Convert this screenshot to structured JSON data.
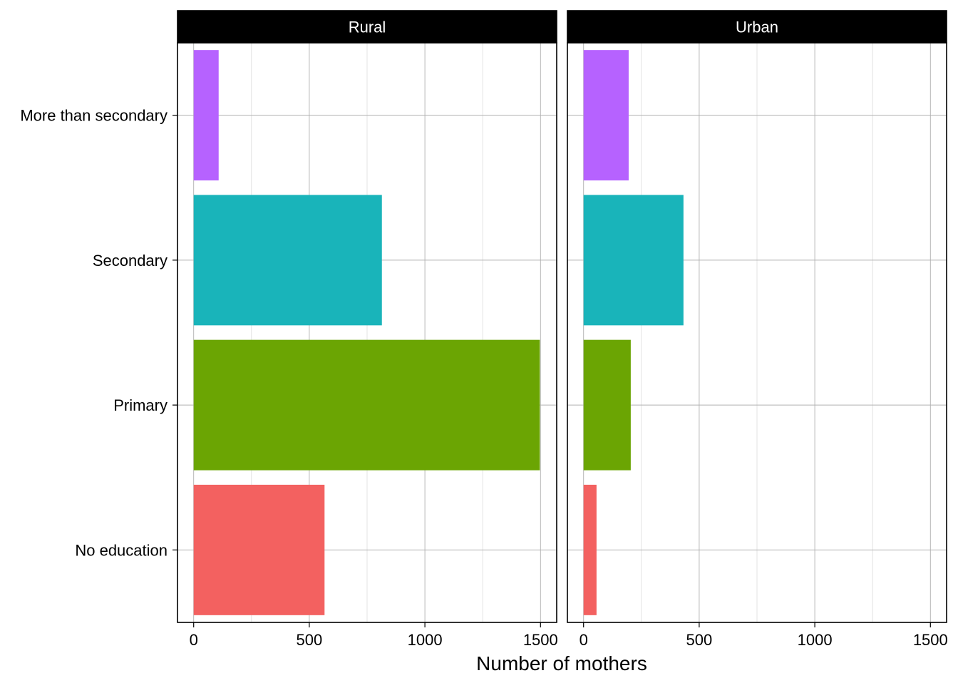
{
  "chart_data": {
    "type": "bar",
    "orientation": "horizontal",
    "facet_variable": "residence",
    "categories": [
      "No education",
      "Primary",
      "Secondary",
      "More than secondary"
    ],
    "colors": [
      "#F36160",
      "#6BA503",
      "#19B4BA",
      "#B662FF"
    ],
    "panels": [
      {
        "title": "Rural",
        "values": [
          566,
          1497,
          814,
          108
        ]
      },
      {
        "title": "Urban",
        "values": [
          56,
          204,
          432,
          195
        ]
      }
    ],
    "xlabel": "Number of mothers",
    "ylabel": "",
    "xlim": [
      -70,
      1570
    ],
    "xticks": [
      0,
      500,
      1000,
      1500
    ],
    "xminor": [
      250,
      750,
      1250
    ],
    "grid": true,
    "legend": "none"
  }
}
